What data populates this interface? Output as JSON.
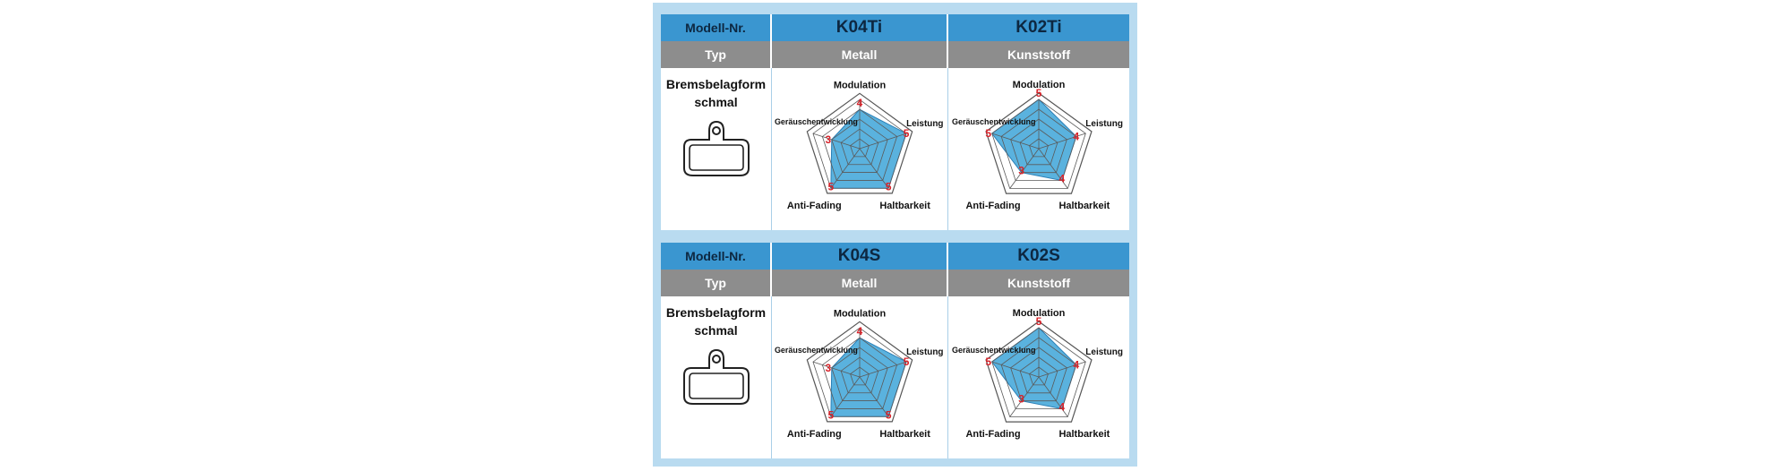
{
  "header_labels": {
    "model": "Modell-Nr.",
    "type": "Typ"
  },
  "shape_label": {
    "line1": "Bremsbelagform",
    "line2": "schmal"
  },
  "accent_colors": {
    "header_blue": "#3a96d0",
    "type_gray": "#8d8d8d",
    "radar_fill": "#5ab2de",
    "score_red": "#d8232a",
    "frame": "#b9dbf0"
  },
  "icons": {
    "pad": "brake-pad-icon"
  },
  "chart_data": [
    {
      "type": "radar",
      "model": "K04Ti",
      "material": "Metall",
      "axes": [
        "Modulation",
        "Leistung",
        "Haltbarkeit",
        "Anti-Fading",
        "Geräuschentwicklung"
      ],
      "scale_max": 5,
      "values": [
        4,
        5,
        5,
        5,
        3
      ]
    },
    {
      "type": "radar",
      "model": "K02Ti",
      "material": "Kunststoff",
      "axes": [
        "Modulation",
        "Leistung",
        "Haltbarkeit",
        "Anti-Fading",
        "Geräuschentwicklung"
      ],
      "scale_max": 5,
      "values": [
        5,
        4,
        4,
        3,
        5
      ]
    },
    {
      "type": "radar",
      "model": "K04S",
      "material": "Metall",
      "axes": [
        "Modulation",
        "Leistung",
        "Haltbarkeit",
        "Anti-Fading",
        "Geräuschentwicklung"
      ],
      "scale_max": 5,
      "values": [
        4,
        5,
        5,
        5,
        3
      ]
    },
    {
      "type": "radar",
      "model": "K02S",
      "material": "Kunststoff",
      "axes": [
        "Modulation",
        "Leistung",
        "Haltbarkeit",
        "Anti-Fading",
        "Geräuschentwicklung"
      ],
      "scale_max": 5,
      "values": [
        5,
        4,
        4,
        3,
        5
      ]
    }
  ]
}
